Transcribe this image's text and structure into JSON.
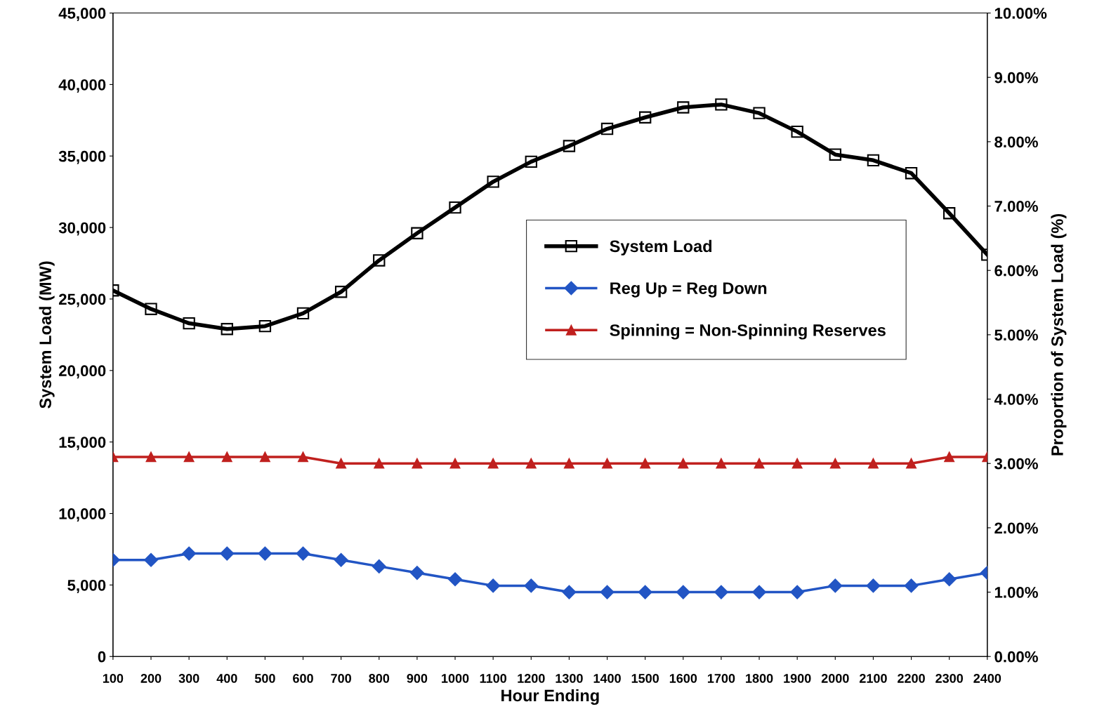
{
  "chart_data": {
    "type": "line",
    "xlabel": "Hour Ending",
    "ylabel": "System Load (MW)",
    "y2label": "Proportion of System Load (%)",
    "categories": [
      "100",
      "200",
      "300",
      "400",
      "500",
      "600",
      "700",
      "800",
      "900",
      "1000",
      "1100",
      "1200",
      "1300",
      "1400",
      "1500",
      "1600",
      "1700",
      "1800",
      "1900",
      "2000",
      "2100",
      "2200",
      "2300",
      "2400"
    ],
    "series": [
      {
        "name": "System Load",
        "color": "#000000",
        "marker": "square",
        "values": [
          25600,
          24300,
          23300,
          22900,
          23100,
          24000,
          25500,
          27700,
          29600,
          31400,
          33200,
          34600,
          35700,
          36900,
          37700,
          38400,
          38600,
          38000,
          36700,
          35100,
          34700,
          33800,
          31000,
          28100
        ]
      },
      {
        "name": "Reg Up = Reg Down",
        "color": "#2255c4",
        "marker": "diamond",
        "axis": "y2",
        "values": [
          1.5,
          1.5,
          1.6,
          1.6,
          1.6,
          1.6,
          1.5,
          1.4,
          1.3,
          1.2,
          1.1,
          1.1,
          1.0,
          1.0,
          1.0,
          1.0,
          1.0,
          1.0,
          1.0,
          1.1,
          1.1,
          1.1,
          1.2,
          1.3
        ]
      },
      {
        "name": "Spinning = Non-Spinning Reserves",
        "color": "#c0201e",
        "marker": "triangle",
        "axis": "y2",
        "values": [
          3.1,
          3.1,
          3.1,
          3.1,
          3.1,
          3.1,
          3.0,
          3.0,
          3.0,
          3.0,
          3.0,
          3.0,
          3.0,
          3.0,
          3.0,
          3.0,
          3.0,
          3.0,
          3.0,
          3.0,
          3.0,
          3.0,
          3.1,
          3.1
        ]
      }
    ],
    "ylim": [
      0,
      45000
    ],
    "yticks": [
      {
        "value": 0,
        "label": "0"
      },
      {
        "value": 5000,
        "label": "5,000"
      },
      {
        "value": 10000,
        "label": "10,000"
      },
      {
        "value": 15000,
        "label": "15,000"
      },
      {
        "value": 20000,
        "label": "20,000"
      },
      {
        "value": 25000,
        "label": "25,000"
      },
      {
        "value": 30000,
        "label": "30,000"
      },
      {
        "value": 35000,
        "label": "35,000"
      },
      {
        "value": 40000,
        "label": "40,000"
      },
      {
        "value": 45000,
        "label": "45,000"
      }
    ],
    "y2lim": [
      0,
      10
    ],
    "y2ticks": [
      {
        "value": 0,
        "label": "0.00%"
      },
      {
        "value": 1,
        "label": "1.00%"
      },
      {
        "value": 2,
        "label": "2.00%"
      },
      {
        "value": 3,
        "label": "3.00%"
      },
      {
        "value": 4,
        "label": "4.00%"
      },
      {
        "value": 5,
        "label": "5.00%"
      },
      {
        "value": 6,
        "label": "6.00%"
      },
      {
        "value": 7,
        "label": "7.00%"
      },
      {
        "value": 8,
        "label": "8.00%"
      },
      {
        "value": 9,
        "label": "9.00%"
      },
      {
        "value": 10,
        "label": "10.00%"
      }
    ],
    "legend": "center",
    "grid": false
  }
}
